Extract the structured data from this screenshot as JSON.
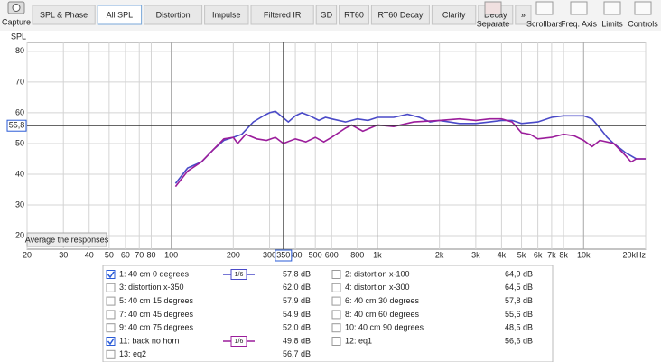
{
  "toolbar": {
    "capture": "Capture",
    "tabs": [
      "SPL & Phase",
      "All SPL",
      "Distortion",
      "Impulse",
      "Filtered IR",
      "GD",
      "RT60",
      "RT60 Decay",
      "Clarity",
      "Decay",
      "»"
    ],
    "active_tab": "All SPL",
    "tools": [
      "Separate",
      "Scrollbars",
      "Freq. Axis",
      "Limits",
      "Controls"
    ]
  },
  "chart_data": {
    "type": "line",
    "ylabel": "SPL",
    "xscale": "log",
    "grid": true,
    "xlim": [
      20,
      20000
    ],
    "ylim": [
      15.6,
      82.9
    ],
    "xticks": [
      20,
      30,
      40,
      50,
      60,
      70,
      80,
      100,
      200,
      300,
      400,
      500,
      600,
      800,
      {
        "value": 1000,
        "label": "1k"
      },
      {
        "value": 2000,
        "label": "2k"
      },
      {
        "value": 3000,
        "label": "3k"
      },
      {
        "value": 4000,
        "label": "4k"
      },
      {
        "value": 5000,
        "label": "5k"
      },
      {
        "value": 6000,
        "label": "6k"
      },
      {
        "value": 7000,
        "label": "7k"
      },
      {
        "value": 8000,
        "label": "8k"
      },
      {
        "value": 10000,
        "label": "10k"
      },
      {
        "value": 20000,
        "label": "20kHz"
      }
    ],
    "yticks": [
      20,
      30,
      40,
      50,
      60,
      70,
      80
    ],
    "cursor": {
      "x": {
        "value": 350,
        "label": "350"
      },
      "y": {
        "value": 55.8,
        "label": "55,8"
      }
    },
    "button": "Average the responses",
    "series": [
      {
        "name": "1: 40 cm 0 degrees",
        "level": "57,8 dB",
        "color": "#4a4ac8",
        "checked": true,
        "smoothing": "1/6",
        "x": [
          105,
          120,
          140,
          160,
          180,
          200,
          220,
          250,
          280,
          300,
          320,
          340,
          370,
          400,
          430,
          470,
          520,
          560,
          600,
          700,
          800,
          900,
          1000,
          1200,
          1400,
          1600,
          1800,
          2000,
          2500,
          3000,
          3500,
          4000,
          4500,
          5000,
          6000,
          7000,
          8000,
          9000,
          10000,
          11000,
          12000,
          13000,
          14000,
          16000,
          18000,
          20000
        ],
        "values": [
          37,
          42,
          44,
          48,
          51,
          52,
          53,
          57,
          59,
          60,
          60.5,
          59,
          57,
          59,
          60,
          59,
          57.5,
          58.5,
          58,
          57,
          58,
          57.5,
          58.5,
          58.5,
          59.5,
          58.5,
          57,
          57.5,
          56.5,
          56.5,
          57,
          57.5,
          57.5,
          56.5,
          57,
          58.5,
          59,
          59,
          59,
          58,
          55,
          52,
          50,
          47,
          45,
          45
        ]
      },
      {
        "name": "2: distortion x-100",
        "level": "64,9 dB",
        "color": "#e07a10",
        "checked": false
      },
      {
        "name": "3: distortion x-350",
        "level": "62,0 dB",
        "color": "#2a9a2a",
        "checked": false
      },
      {
        "name": "4: distortion x-300",
        "level": "64,5 dB",
        "color": "#3070c0",
        "checked": false
      },
      {
        "name": "5: 40 cm 15 degrees",
        "level": "57,9 dB",
        "color": "#c8641e",
        "checked": false
      },
      {
        "name": "6: 40 cm 30 degrees",
        "level": "57,8 dB",
        "color": "#1a8aa0",
        "checked": false
      },
      {
        "name": "7: 40 cm 45 degrees",
        "level": "54,9 dB",
        "color": "#8a2ab0",
        "checked": false
      },
      {
        "name": "8: 40 cm 60 degrees",
        "level": "55,6 dB",
        "color": "#9a3aaa",
        "checked": false
      },
      {
        "name": "9: 40 cm 75 degrees",
        "level": "52,0 dB",
        "color": "#b02040",
        "checked": false
      },
      {
        "name": "10: 40 cm 90 degrees",
        "level": "48,5 dB",
        "color": "#2a8a3a",
        "checked": false
      },
      {
        "name": "11: back no horn",
        "level": "49,8 dB",
        "color": "#9b1d9b",
        "checked": true,
        "smoothing": "1/6",
        "x": [
          105,
          120,
          140,
          160,
          180,
          200,
          210,
          230,
          260,
          290,
          320,
          350,
          400,
          450,
          500,
          550,
          600,
          700,
          750,
          850,
          1000,
          1200,
          1500,
          2000,
          2500,
          3000,
          3500,
          4000,
          4500,
          5000,
          5500,
          6000,
          7000,
          8000,
          9000,
          10000,
          11000,
          12000,
          14000,
          16000,
          17000,
          18000,
          20000
        ],
        "values": [
          36,
          41,
          44,
          48,
          51.5,
          52,
          50,
          53,
          51.5,
          51,
          52,
          50,
          51.5,
          50.5,
          52,
          50.5,
          52,
          55,
          56,
          54,
          56,
          55.5,
          57,
          57.5,
          58,
          57.5,
          58,
          58,
          57,
          53.5,
          53,
          51.5,
          52,
          53,
          52.5,
          51,
          49,
          51,
          50,
          46,
          44,
          45,
          45
        ]
      },
      {
        "name": "12: eq1",
        "level": "56,6 dB",
        "color": "#e08020",
        "checked": false
      },
      {
        "name": "13: eq2",
        "level": "56,7 dB",
        "color": "#2a9a2a",
        "checked": false
      }
    ]
  }
}
